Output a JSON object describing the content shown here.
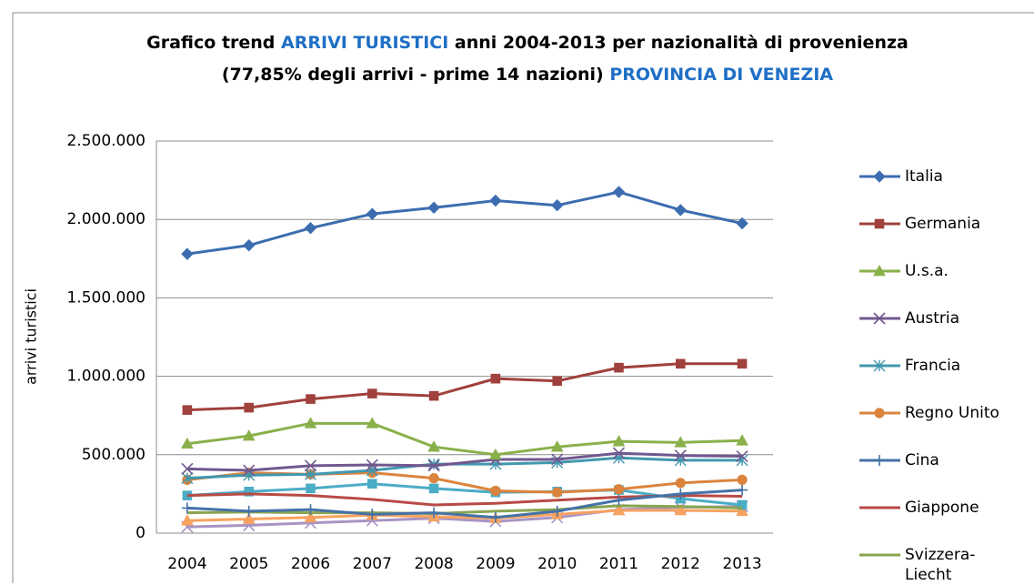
{
  "chart_data": {
    "type": "line",
    "title": [
      [
        {
          "text": "Grafico trend ",
          "color": "#000000"
        },
        {
          "text": "ARRIVI TURISTICI",
          "color": "#1f6fc5"
        },
        {
          "text": " anni 2004-2013 per nazionalità di provenienza",
          "color": "#000000"
        }
      ],
      [
        {
          "text": "(77,85% degli arrivi  - prime 14 nazioni) ",
          "color": "#000000"
        },
        {
          "text": "PROVINCIA DI VENEZIA",
          "color": "#1f6fc5"
        }
      ]
    ],
    "y_label": "arrivi turistici",
    "categories": [
      "2004",
      "2005",
      "2006",
      "2007",
      "2008",
      "2009",
      "2010",
      "2011",
      "2012",
      "2013"
    ],
    "ylim": [
      0,
      2500000
    ],
    "yticks": [
      0,
      {
        "value": 500000,
        "label": "500.000"
      },
      {
        "value": 1000000,
        "label": "1.000.000"
      },
      {
        "value": 1500000,
        "label": "1.500.000"
      },
      {
        "value": 2000000,
        "label": "2.000.000"
      },
      {
        "value": 2500000,
        "label": "2.500.000"
      }
    ],
    "grid": true,
    "legend": "right",
    "series": [
      {
        "name": "Italia",
        "color": "#3c6db0",
        "marker": "diamond",
        "values": [
          1780000,
          1835000,
          1945000,
          2035000,
          2075000,
          2120000,
          2090000,
          2175000,
          2060000,
          1975000
        ]
      },
      {
        "name": "Germania",
        "color": "#a0413d",
        "marker": "square",
        "values": [
          785000,
          800000,
          855000,
          890000,
          875000,
          985000,
          970000,
          1055000,
          1080000,
          1080000
        ]
      },
      {
        "name": "U.s.a.",
        "color": "#8ab04a",
        "marker": "triangle",
        "values": [
          570000,
          620000,
          700000,
          700000,
          550000,
          500000,
          550000,
          585000,
          578000,
          590000
        ]
      },
      {
        "name": "Austria",
        "color": "#71588f",
        "marker": "x",
        "values": [
          410000,
          400000,
          430000,
          435000,
          430000,
          470000,
          470000,
          510000,
          495000,
          490000
        ]
      },
      {
        "name": "Francia",
        "color": "#4198af",
        "marker": "star",
        "values": [
          350000,
          370000,
          375000,
          400000,
          440000,
          440000,
          450000,
          480000,
          465000,
          465000
        ]
      },
      {
        "name": "Regno Unito",
        "color": "#db843d",
        "marker": "circle",
        "values": [
          340000,
          385000,
          375000,
          385000,
          350000,
          270000,
          260000,
          280000,
          320000,
          340000
        ]
      },
      {
        "name": "Cina",
        "color": "#4572a7",
        "marker": "plus",
        "values": [
          160000,
          140000,
          150000,
          120000,
          130000,
          100000,
          140000,
          210000,
          250000,
          275000
        ]
      },
      {
        "name": "Giappone",
        "color": "#b94a45",
        "marker": "none",
        "values": [
          240000,
          250000,
          240000,
          215000,
          180000,
          190000,
          210000,
          230000,
          240000,
          235000
        ]
      },
      {
        "name": "Svizzera-Liecht",
        "color": "#89a54e",
        "marker": "none",
        "values": [
          130000,
          135000,
          130000,
          130000,
          125000,
          140000,
          150000,
          175000,
          170000,
          160000
        ]
      },
      {
        "color": "#4bacc6",
        "marker": "square",
        "values": [
          240000,
          265000,
          285000,
          315000,
          285000,
          260000,
          265000,
          275000,
          220000,
          180000
        ]
      },
      {
        "color": "#f7a25f",
        "marker": "triangle",
        "values": [
          80000,
          90000,
          100000,
          115000,
          105000,
          95000,
          120000,
          145000,
          145000,
          140000
        ]
      },
      {
        "color": "#a894c4",
        "marker": "x",
        "values": [
          40000,
          50000,
          65000,
          80000,
          95000,
          75000,
          100000,
          150000,
          165000,
          170000
        ]
      }
    ]
  }
}
